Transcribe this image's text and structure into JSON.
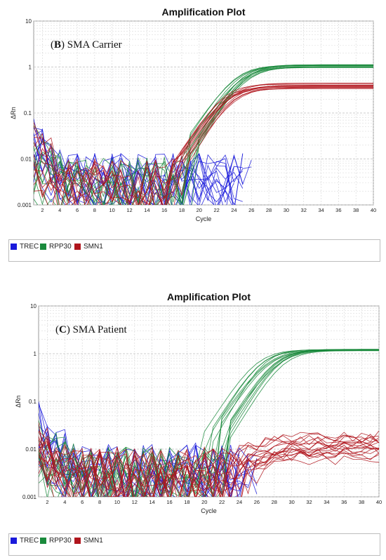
{
  "panels": [
    {
      "title": "Amplification Plot",
      "annotation_letter": "B",
      "annotation_text": " SMA Carrier",
      "xlabel": "Cycle",
      "ylabel": "ΔRn",
      "legend": [
        {
          "label": "TREC",
          "color": "#1a1adb"
        },
        {
          "label": "RPP30",
          "color": "#1a8a3c"
        },
        {
          "label": "SMN1",
          "color": "#b0151d"
        }
      ]
    },
    {
      "title": "Amplification Plot",
      "annotation_letter": "C",
      "annotation_text": " SMA Patient",
      "xlabel": "Cycle",
      "ylabel": "ΔRn",
      "legend": [
        {
          "label": "TREC",
          "color": "#1a1adb"
        },
        {
          "label": "RPP30",
          "color": "#1a8a3c"
        },
        {
          "label": "SMN1",
          "color": "#b0151d"
        }
      ]
    }
  ],
  "chart_data": [
    {
      "type": "line",
      "title": "Amplification Plot",
      "annotation": "(B) SMA Carrier",
      "xlabel": "Cycle",
      "ylabel": "ΔRn",
      "xlim": [
        1,
        40
      ],
      "ylim": [
        0.001,
        10
      ],
      "yscale": "log",
      "x_ticks": [
        2,
        4,
        6,
        8,
        10,
        12,
        14,
        16,
        18,
        20,
        22,
        24,
        26,
        28,
        30,
        32,
        34,
        36,
        38,
        40
      ],
      "y_ticks": [
        0.001,
        0.01,
        0.1,
        1,
        10
      ],
      "y_tick_labels": [
        "0.001",
        "0.01",
        "0.1",
        "1",
        "10"
      ],
      "grid": true,
      "legend_position": "bottom",
      "series": [
        {
          "name": "TREC",
          "color": "#1a1adb",
          "curves": 14,
          "shape": "noise",
          "noise_until_cycle": 27,
          "start_level": 0.02
        },
        {
          "name": "RPP30",
          "color": "#1a8a3c",
          "curves": 12,
          "shape": "sigmoid",
          "midpoint_cycle_range": [
            23.5,
            25.5
          ],
          "plateau_range": [
            0.95,
            1.15
          ],
          "baseline": 0.0025
        },
        {
          "name": "SMN1",
          "color": "#b0151d",
          "curves": 12,
          "shape": "sigmoid",
          "midpoint_cycle_range": [
            22.5,
            24.5
          ],
          "plateau_range": [
            0.32,
            0.45
          ],
          "baseline": 0.0025
        }
      ]
    },
    {
      "type": "line",
      "title": "Amplification Plot",
      "annotation": "(C) SMA Patient",
      "xlabel": "Cycle",
      "ylabel": "ΔRn",
      "xlim": [
        1,
        40
      ],
      "ylim": [
        0.001,
        10
      ],
      "yscale": "log",
      "x_ticks": [
        2,
        4,
        6,
        8,
        10,
        12,
        14,
        16,
        18,
        20,
        22,
        24,
        26,
        28,
        30,
        32,
        34,
        36,
        38,
        40
      ],
      "y_ticks": [
        0.001,
        0.01,
        0.1,
        1,
        10
      ],
      "y_tick_labels": [
        "0.001",
        "0.01",
        "0.1",
        "1",
        "10"
      ],
      "grid": true,
      "legend_position": "bottom",
      "series": [
        {
          "name": "TREC",
          "color": "#1a1adb",
          "curves": 14,
          "shape": "noise",
          "noise_until_cycle": 27,
          "start_level": 0.02
        },
        {
          "name": "RPP30",
          "color": "#1a8a3c",
          "curves": 14,
          "shape": "sigmoid",
          "midpoint_cycle_range": [
            25.5,
            29
          ],
          "plateau_range": [
            1.15,
            1.25
          ],
          "baseline": 0.0025
        },
        {
          "name": "SMN1",
          "color": "#b0151d",
          "curves": 18,
          "shape": "noise_rise",
          "rise_start_cycle": 24,
          "plateau_range": [
            0.006,
            0.02
          ],
          "baseline": 0.0025
        }
      ]
    }
  ]
}
